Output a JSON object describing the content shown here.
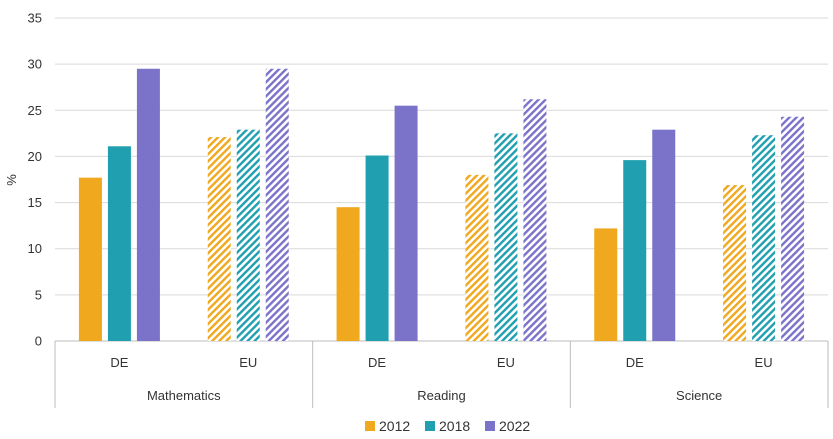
{
  "chart_data": {
    "type": "bar",
    "ylabel": "%",
    "ylim": [
      0,
      35
    ],
    "yticks": [
      0,
      5,
      10,
      15,
      20,
      25,
      30,
      35
    ],
    "grid": "horizontal",
    "legend_position": "bottom",
    "groups": [
      {
        "label": "Mathematics",
        "categories": [
          {
            "label": "DE",
            "pattern": "solid"
          },
          {
            "label": "EU",
            "pattern": "hatched"
          }
        ]
      },
      {
        "label": "Reading",
        "categories": [
          {
            "label": "DE",
            "pattern": "solid"
          },
          {
            "label": "EU",
            "pattern": "hatched"
          }
        ]
      },
      {
        "label": "Science",
        "categories": [
          {
            "label": "DE",
            "pattern": "solid"
          },
          {
            "label": "EU",
            "pattern": "hatched"
          }
        ]
      }
    ],
    "series": [
      {
        "name": "2012",
        "color": "#f0a81e",
        "values": [
          17.7,
          22.1,
          14.5,
          18.0,
          12.2,
          16.9
        ]
      },
      {
        "name": "2018",
        "color": "#1f9faf",
        "values": [
          21.1,
          22.9,
          20.1,
          22.5,
          19.6,
          22.3
        ]
      },
      {
        "name": "2022",
        "color": "#7b72c9",
        "values": [
          29.5,
          29.5,
          25.5,
          26.2,
          22.9,
          24.3
        ]
      }
    ]
  }
}
